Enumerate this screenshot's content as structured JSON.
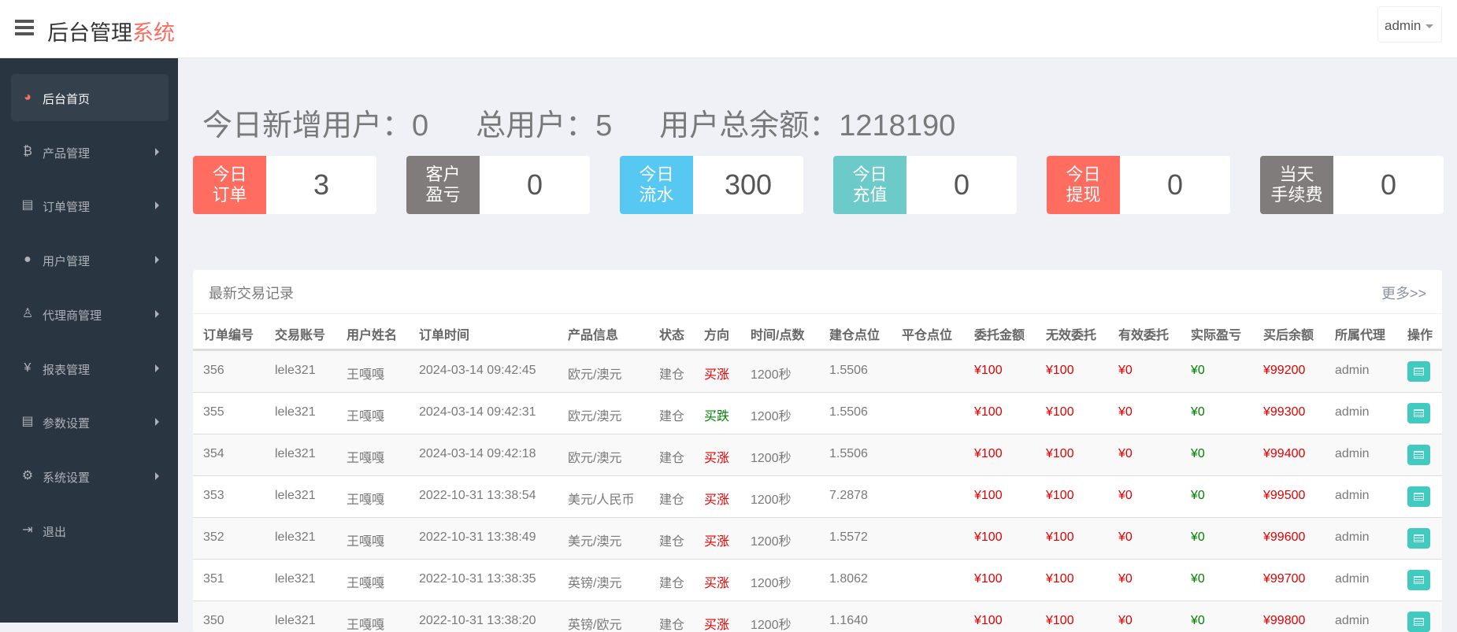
{
  "header": {
    "title_main": "后台管理",
    "title_accent": "系统",
    "user": "admin"
  },
  "sidebar": {
    "items": [
      {
        "label": "后台首页",
        "icon": "dashboard-icon",
        "active": true
      },
      {
        "label": "产品管理",
        "icon": "bitcoin-icon"
      },
      {
        "label": "订单管理",
        "icon": "copy-icon"
      },
      {
        "label": "用户管理",
        "icon": "user-icon"
      },
      {
        "label": "代理商管理",
        "icon": "user-md-icon"
      },
      {
        "label": "报表管理",
        "icon": "yen-icon"
      },
      {
        "label": "参数设置",
        "icon": "copy-icon"
      },
      {
        "label": "系统设置",
        "icon": "cogs-icon"
      },
      {
        "label": "退出",
        "icon": "sign-out-icon"
      }
    ]
  },
  "stats": {
    "new_users": "今日新增用户：0",
    "total_users": "总用户：5",
    "total_balance": "用户总余额：1218190"
  },
  "cards": [
    {
      "label1": "今日",
      "label2": "订单",
      "value": "3",
      "color": "#ff6c60"
    },
    {
      "label1": "客户",
      "label2": "盈亏",
      "value": "0",
      "color": "#7f7c7b"
    },
    {
      "label1": "今日",
      "label2": "流水",
      "value": "300",
      "color": "#57c8f2"
    },
    {
      "label1": "今日",
      "label2": "充值",
      "value": "0",
      "color": "#6ccac9"
    },
    {
      "label1": "今日",
      "label2": "提现",
      "value": "0",
      "color": "#ff6c60"
    },
    {
      "label1": "当天",
      "label2": "手续费",
      "value": "0",
      "color": "#7f7c7b"
    }
  ],
  "panel": {
    "title": "最新交易记录",
    "more": "更多>>"
  },
  "table": {
    "columns": [
      "订单编号",
      "交易账号",
      "用户姓名",
      "订单时间",
      "产品信息",
      "状态",
      "方向",
      "时间/点数",
      "建仓点位",
      "平仓点位",
      "委托金额",
      "无效委托",
      "有效委托",
      "实际盈亏",
      "买后余额",
      "所属代理",
      "操作"
    ],
    "rows": [
      [
        "356",
        "lele321",
        "王嘎嘎",
        "2024-03-14 09:42:45",
        "欧元/澳元",
        "建仓",
        "买涨",
        "1200秒",
        "1.5506",
        "",
        "¥100",
        "¥100",
        "¥0",
        "¥0",
        "¥99200",
        "admin"
      ],
      [
        "355",
        "lele321",
        "王嘎嘎",
        "2024-03-14 09:42:31",
        "欧元/澳元",
        "建仓",
        "买跌",
        "1200秒",
        "1.5506",
        "",
        "¥100",
        "¥100",
        "¥0",
        "¥0",
        "¥99300",
        "admin"
      ],
      [
        "354",
        "lele321",
        "王嘎嘎",
        "2024-03-14 09:42:18",
        "欧元/澳元",
        "建仓",
        "买涨",
        "1200秒",
        "1.5506",
        "",
        "¥100",
        "¥100",
        "¥0",
        "¥0",
        "¥99400",
        "admin"
      ],
      [
        "353",
        "lele321",
        "王嘎嘎",
        "2022-10-31 13:38:54",
        "美元/人民币",
        "建仓",
        "买涨",
        "1200秒",
        "7.2878",
        "",
        "¥100",
        "¥100",
        "¥0",
        "¥0",
        "¥99500",
        "admin"
      ],
      [
        "352",
        "lele321",
        "王嘎嘎",
        "2022-10-31 13:38:49",
        "美元/澳元",
        "建仓",
        "买涨",
        "1200秒",
        "1.5572",
        "",
        "¥100",
        "¥100",
        "¥0",
        "¥0",
        "¥99600",
        "admin"
      ],
      [
        "351",
        "lele321",
        "王嘎嘎",
        "2022-10-31 13:38:35",
        "英镑/澳元",
        "建仓",
        "买涨",
        "1200秒",
        "1.8062",
        "",
        "¥100",
        "¥100",
        "¥0",
        "¥0",
        "¥99700",
        "admin"
      ],
      [
        "350",
        "lele321",
        "王嘎嘎",
        "2022-10-31 13:38:20",
        "英镑/欧元",
        "建仓",
        "买涨",
        "1200秒",
        "1.1640",
        "",
        "¥100",
        "¥100",
        "¥0",
        "¥0",
        "¥99800",
        "admin"
      ]
    ]
  },
  "colors": {
    "accent": "#ff6c60",
    "up": "#e30000",
    "down": "#008000",
    "button": "#41cac0",
    "sidebar": "#2a3542"
  }
}
